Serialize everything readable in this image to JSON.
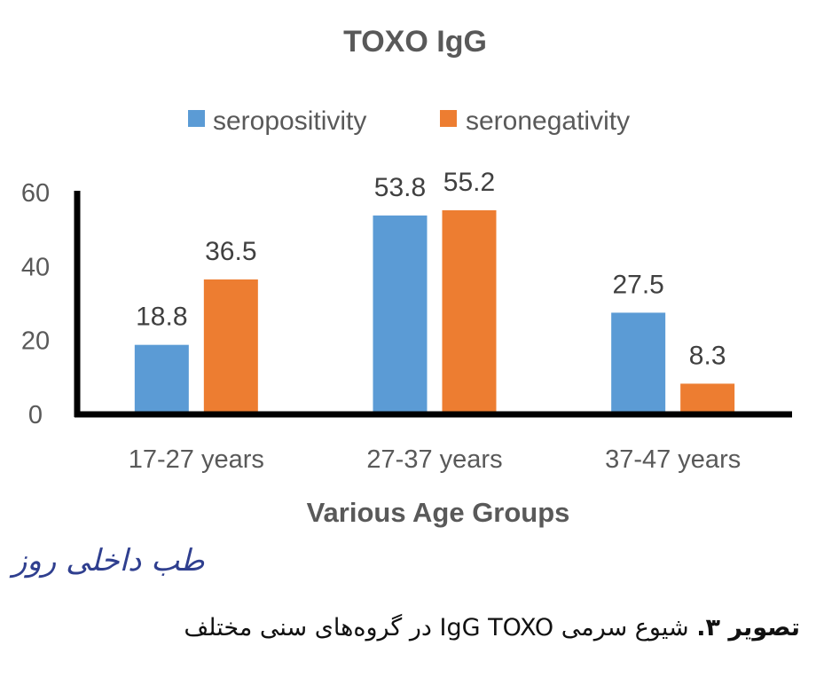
{
  "chart_data": {
    "type": "bar",
    "title": "TOXO IgG",
    "xlabel": "Various Age Groups",
    "ylabel": "",
    "categories": [
      "17-27 years",
      "27-37 years",
      "37-47 years"
    ],
    "series": [
      {
        "name": "seropositivity",
        "values": [
          18.8,
          53.8,
          27.5
        ],
        "color": "#5b9bd5"
      },
      {
        "name": "seronegativity",
        "values": [
          36.5,
          55.2,
          8.3
        ],
        "color": "#ed7d31"
      }
    ],
    "ylim": [
      0,
      60
    ],
    "yticks": [
      0,
      20,
      40,
      60
    ],
    "data_labels": true,
    "grid": false,
    "legend_position": "top"
  },
  "watermark_text": "طب داخلی روز",
  "caption": {
    "label": "تصویر ۳.",
    "text": "شیوع سرمی IgG TOXO در گروه‌های سنی مختلف"
  }
}
